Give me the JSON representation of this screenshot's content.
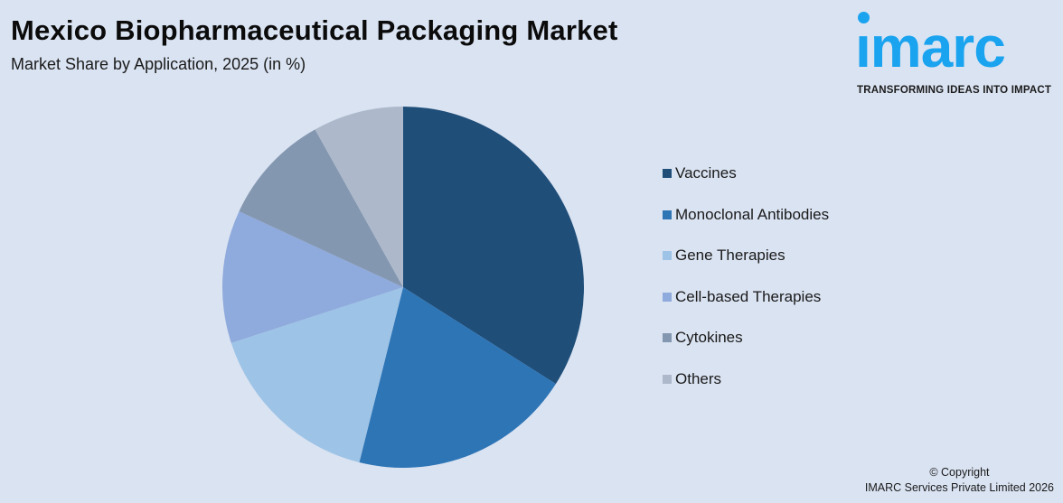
{
  "header": {
    "title": "Mexico Biopharmaceutical Packaging Market",
    "subtitle": "Market Share by Application, 2025 (in %)"
  },
  "logo": {
    "word": "ımarc",
    "tagline": "TRANSFORMING IDEAS INTO IMPACT",
    "color": "#1aa3ef"
  },
  "footer": {
    "copyright_line1": "© Copyright",
    "copyright_line2": "IMARC Services Private Limited 2026"
  },
  "legend": {
    "items": [
      {
        "label": "Vaccines",
        "color": "#1f4e79"
      },
      {
        "label": "Monoclonal Antibodies",
        "color": "#2e75b6"
      },
      {
        "label": "Gene Therapies",
        "color": "#9dc3e6"
      },
      {
        "label": "Cell-based Therapies",
        "color": "#8faadc"
      },
      {
        "label": "Cytokines",
        "color": "#8497b0"
      },
      {
        "label": "Others",
        "color": "#adb9ca"
      }
    ]
  },
  "chart_data": {
    "type": "pie",
    "title": "Mexico Biopharmaceutical Packaging Market",
    "subtitle": "Market Share by Application, 2025 (in %)",
    "categories": [
      "Vaccines",
      "Monoclonal Antibodies",
      "Gene Therapies",
      "Cell-based Therapies",
      "Cytokines",
      "Others"
    ],
    "values": [
      34.0,
      19.9,
      16.1,
      11.9,
      10.0,
      8.1
    ],
    "colors": [
      "#1f4e79",
      "#2e75b6",
      "#9dc3e6",
      "#8faadc",
      "#8497b0",
      "#adb9ca"
    ],
    "start_angle_deg": 0,
    "direction": "clockwise",
    "legend_position": "right",
    "data_labels": false
  }
}
